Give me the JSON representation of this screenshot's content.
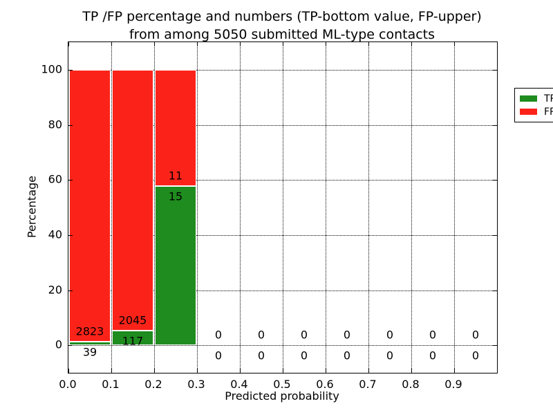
{
  "figure": {
    "title_line1": "TP /FP percentage and numbers (TP-bottom value, FP-upper)",
    "title_line2": "from among 5050 submitted ML-type contacts",
    "xlabel": "Predicted probability",
    "ylabel": "Percentage"
  },
  "legend": {
    "position": "upper right",
    "items": [
      {
        "label": "TP",
        "color": "#1e8c1e"
      },
      {
        "label": "FP",
        "color": "#fb2319"
      }
    ]
  },
  "chart_data": {
    "type": "bar",
    "stacked": true,
    "title": "TP /FP percentage and numbers (TP-bottom value, FP-upper) from among 5050 submitted ML-type contacts",
    "xlabel": "Predicted probability",
    "ylabel": "Percentage",
    "xlim": [
      0.0,
      1.0
    ],
    "ylim": [
      -10,
      110
    ],
    "grid": "dotted-black-major",
    "legend_position": "upper right",
    "total_submitted": 5050,
    "bin_width": 0.1,
    "bin_starts": [
      0.0,
      0.1,
      0.2,
      0.3,
      0.4,
      0.5,
      0.6,
      0.7,
      0.8,
      0.9
    ],
    "xticks": [
      "0.0",
      "0.1",
      "0.2",
      "0.3",
      "0.4",
      "0.5",
      "0.6",
      "0.7",
      "0.8",
      "0.9"
    ],
    "yticks": [
      0,
      20,
      40,
      60,
      80,
      100
    ],
    "series": [
      {
        "name": "TP",
        "color": "#1e8c1e",
        "counts": [
          39,
          117,
          15,
          0,
          0,
          0,
          0,
          0,
          0,
          0
        ],
        "percent": [
          1.36,
          5.41,
          57.69,
          0,
          0,
          0,
          0,
          0,
          0,
          0
        ]
      },
      {
        "name": "FP",
        "color": "#fb2319",
        "counts": [
          2823,
          2045,
          11,
          0,
          0,
          0,
          0,
          0,
          0,
          0
        ],
        "percent": [
          98.64,
          94.59,
          42.31,
          0,
          0,
          0,
          0,
          0,
          0,
          0
        ]
      }
    ]
  }
}
